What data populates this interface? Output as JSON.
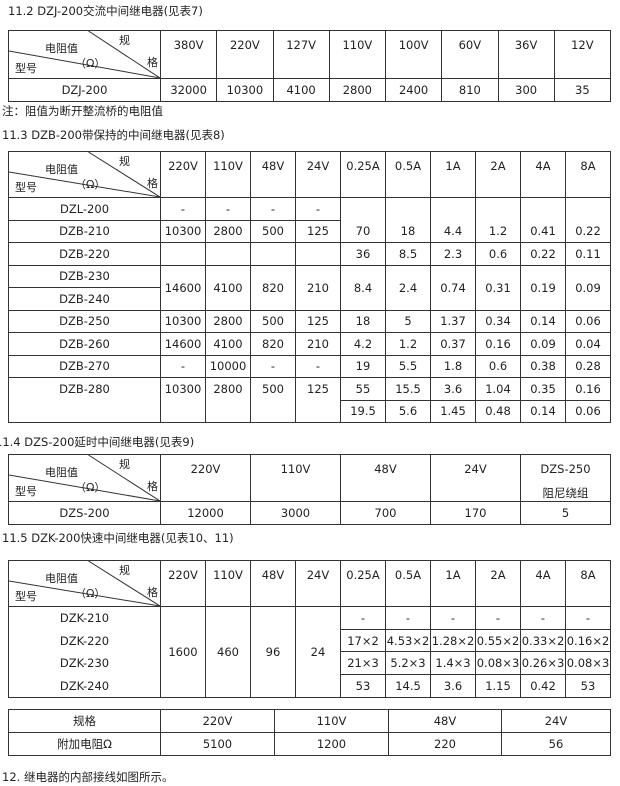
{
  "diag": {
    "gui": "规",
    "ge": "格",
    "dianzu": "电阻值",
    "omega": "（Ω）",
    "xinghao": "型号"
  },
  "s1": {
    "title": "11.2 DZJ-200交流中间继电器(见表7)",
    "headers": [
      "380V",
      "220V",
      "127V",
      "110V",
      "100V",
      "60V",
      "36V",
      "12V"
    ],
    "row": {
      "model": "DZJ-200",
      "values": [
        "32000",
        "10300",
        "4100",
        "2800",
        "2400",
        "810",
        "300",
        "35"
      ]
    },
    "note": "注：阻值为断开整流桥的电阻值"
  },
  "s2": {
    "title": "11.3 DZB-200带保持的中间继电器(见表8)",
    "headers": [
      "220V",
      "110V",
      "48V",
      "24V",
      "0.25A",
      "0.5A",
      "1A",
      "2A",
      "4A",
      "8A"
    ],
    "rows": [
      {
        "model": "DZL-200",
        "v": [
          "-",
          "-",
          "-",
          "-"
        ]
      },
      {
        "model": "DZB-210",
        "v": [
          "10300",
          "2800",
          "500",
          "125"
        ],
        "a": [
          "70",
          "18",
          "4.4",
          "1.2",
          "0.41",
          "0.22"
        ]
      },
      {
        "model": "DZB-220",
        "a": [
          "36",
          "8.5",
          "2.3",
          "0.6",
          "0.22",
          "0.11"
        ]
      },
      {
        "model": "DZB-230",
        "v": [
          "14600",
          "4100",
          "820",
          "210"
        ],
        "a": [
          "8.4",
          "2.4",
          "0.74",
          "0.31",
          "0.19",
          "0.09"
        ]
      },
      {
        "model": "DZB-240"
      },
      {
        "model": "DZB-250",
        "v": [
          "10300",
          "2800",
          "500",
          "125"
        ],
        "a": [
          "18",
          "5",
          "1.37",
          "0.34",
          "0.14",
          "0.06"
        ]
      },
      {
        "model": "DZB-260",
        "v": [
          "14600",
          "4100",
          "820",
          "210"
        ],
        "a": [
          "4.2",
          "1.2",
          "0.37",
          "0.16",
          "0.09",
          "0.04"
        ]
      },
      {
        "model": "DZB-270",
        "v": [
          "-",
          "10000",
          "-",
          "-"
        ],
        "a": [
          "19",
          "5.5",
          "1.8",
          "0.6",
          "0.38",
          "0.28"
        ]
      },
      {
        "model": "DZB-280",
        "v": [
          "10300",
          "2800",
          "500",
          "125"
        ],
        "a": [
          "55",
          "15.5",
          "3.6",
          "1.04",
          "0.35",
          "0.16"
        ]
      },
      {
        "a": [
          "19.5",
          "5.6",
          "1.45",
          "0.48",
          "0.14",
          "0.06"
        ]
      }
    ]
  },
  "s3": {
    "title": "11.4 DZS-200延时中间继电器(见表9)",
    "headers": [
      "220V",
      "110V",
      "48V",
      "24V"
    ],
    "last_header": {
      "line1": "DZS-250",
      "line2": "阻尼绕组"
    },
    "row": {
      "model": "DZS-200",
      "values": [
        "12000",
        "3000",
        "700",
        "170",
        "5"
      ]
    }
  },
  "s4": {
    "title": "11.5 DZK-200快速中间继电器(见表10、11)",
    "headers": [
      "220V",
      "110V",
      "48V",
      "24V",
      "0.25A",
      "0.5A",
      "1A",
      "2A",
      "4A",
      "8A"
    ],
    "models": [
      "DZK-210",
      "DZK-220",
      "DZK-230",
      "DZK-240"
    ],
    "v": [
      "1600",
      "460",
      "96",
      "24"
    ],
    "a": [
      [
        "-",
        "-",
        "-",
        "-",
        "-",
        "-"
      ],
      [
        "17×2",
        "4.53×2",
        "1.28×2",
        "0.55×2",
        "0.33×2",
        "0.16×2"
      ],
      [
        "21×3",
        "5.2×3",
        "1.4×3",
        "0.08×3",
        "0.26×3",
        "0.08×3"
      ],
      [
        "53",
        "14.5",
        "3.6",
        "1.15",
        "0.42",
        "53"
      ]
    ]
  },
  "s5": {
    "row1": [
      "规格",
      "220V",
      "110V",
      "48V",
      "24V"
    ],
    "row2": [
      "附加电阻Ω",
      "5100",
      "1200",
      "220",
      "56"
    ]
  },
  "footer": "12. 继电器的内部接线如图所示。"
}
